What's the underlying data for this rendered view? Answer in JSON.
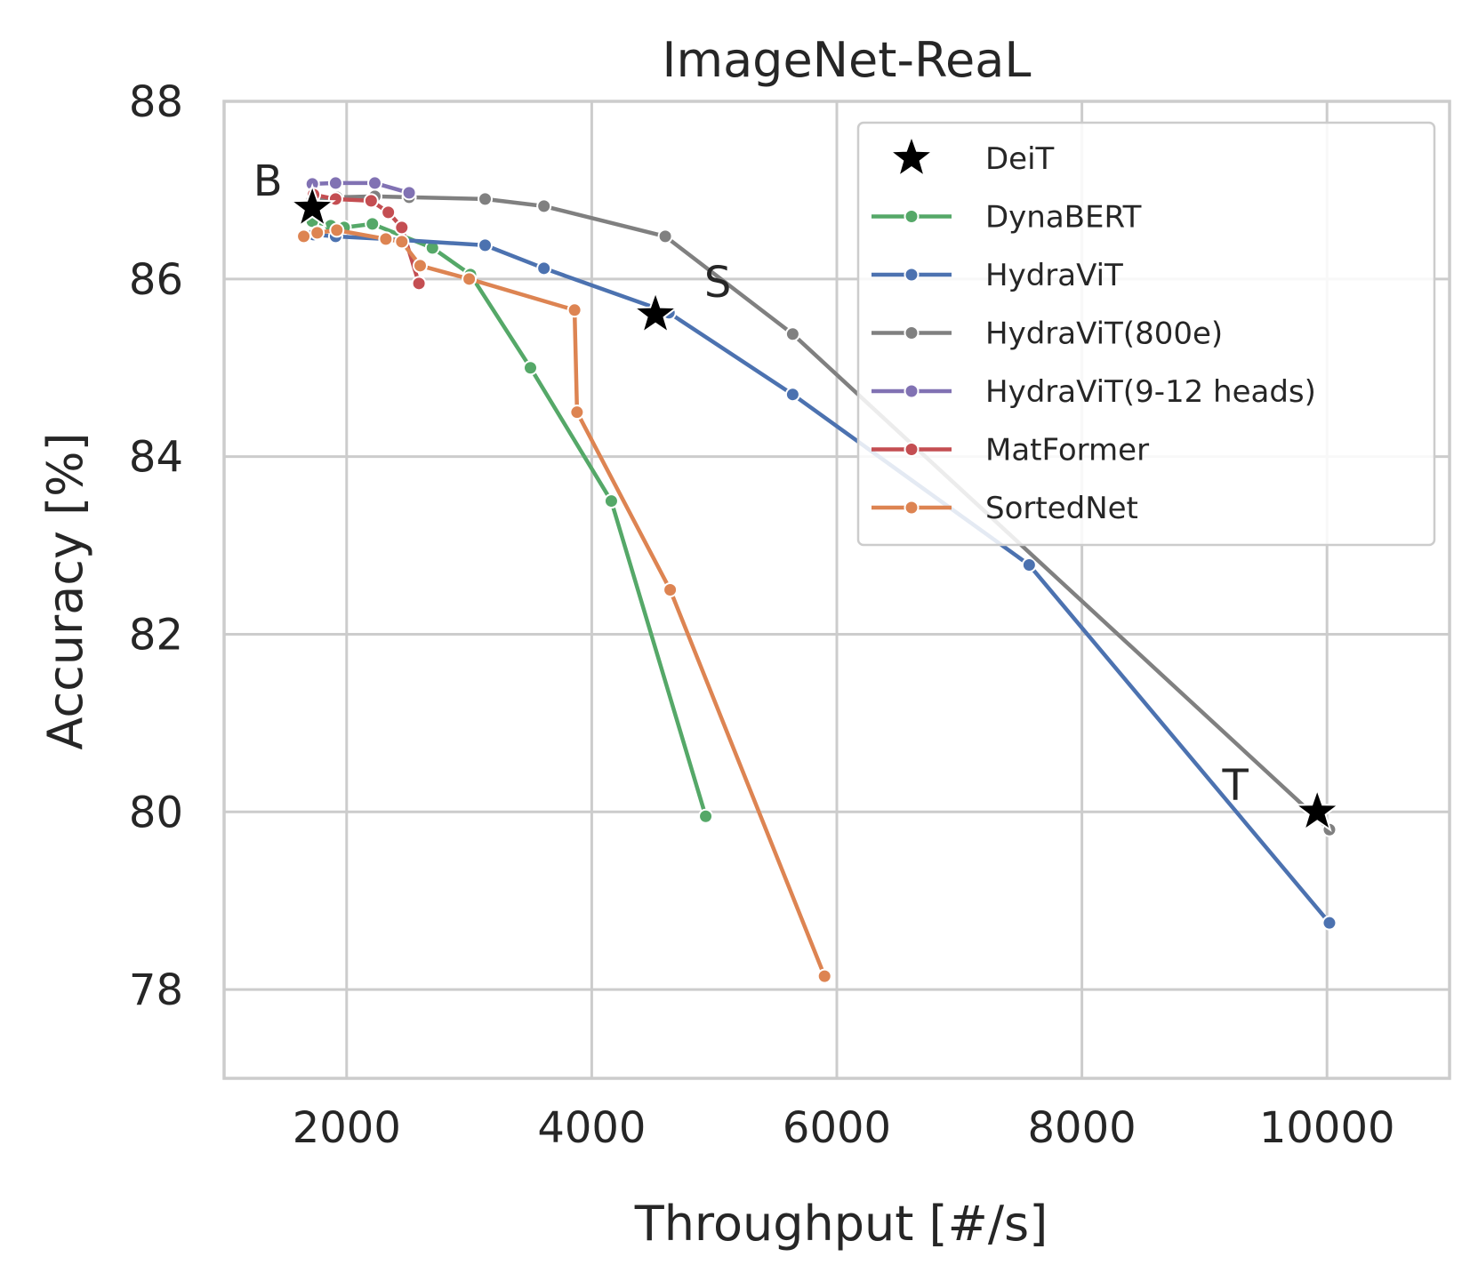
{
  "chart_data": {
    "type": "line",
    "title": "ImageNet-ReaL",
    "xlabel": "Throughput [#/s]",
    "ylabel": "Accuracy [%]",
    "xlim": [
      1000,
      11000
    ],
    "ylim": [
      77.0,
      88.0
    ],
    "xticks": [
      2000,
      4000,
      6000,
      8000,
      10000
    ],
    "yticks": [
      78,
      80,
      82,
      84,
      86,
      88
    ],
    "grid": true,
    "legend_position": "top-right",
    "series": [
      {
        "name": "DeiT",
        "kind": "marker",
        "marker": "star",
        "color": "#000000",
        "points": [
          {
            "x": 1720,
            "y": 86.8,
            "label": "B"
          },
          {
            "x": 4520,
            "y": 85.6,
            "label": "S"
          },
          {
            "x": 9920,
            "y": 80.0,
            "label": "T"
          }
        ]
      },
      {
        "name": "DynaBERT",
        "kind": "line",
        "color": "#55a868",
        "x": [
          1720,
          1870,
          1980,
          2210,
          2700,
          3010,
          3500,
          4160,
          4930
        ],
        "y": [
          86.65,
          86.6,
          86.58,
          86.62,
          86.35,
          86.05,
          85.0,
          83.5,
          79.95
        ]
      },
      {
        "name": "HydraViT",
        "kind": "line",
        "color": "#4c72b0",
        "x": [
          1730,
          1910,
          2320,
          3130,
          3610,
          4630,
          5640,
          7570,
          10020
        ],
        "y": [
          86.5,
          86.48,
          86.45,
          86.38,
          86.12,
          85.62,
          84.7,
          82.78,
          78.75
        ]
      },
      {
        "name": "HydraViT(800e)",
        "kind": "line",
        "color": "#808080",
        "x": [
          1720,
          1920,
          2230,
          2510,
          3130,
          3610,
          4600,
          5640,
          10020
        ],
        "y": [
          86.9,
          86.92,
          86.93,
          86.92,
          86.9,
          86.82,
          86.48,
          85.38,
          79.8
        ]
      },
      {
        "name": "HydraViT(9-12 heads)",
        "kind": "line",
        "color": "#8172b3",
        "x": [
          1720,
          1910,
          2230,
          2510
        ],
        "y": [
          87.07,
          87.08,
          87.08,
          86.97
        ]
      },
      {
        "name": "MatFormer",
        "kind": "line",
        "color": "#c44e52",
        "x": [
          1730,
          1910,
          2200,
          2340,
          2450,
          2590
        ],
        "y": [
          86.95,
          86.9,
          86.88,
          86.75,
          86.58,
          85.95
        ]
      },
      {
        "name": "SortedNet",
        "kind": "line",
        "color": "#dd8452",
        "x": [
          1650,
          1760,
          1920,
          2320,
          2450,
          2600,
          3000,
          3860,
          3880,
          4640,
          5900
        ],
        "y": [
          86.48,
          86.52,
          86.55,
          86.45,
          86.42,
          86.15,
          86.0,
          85.65,
          84.5,
          82.5,
          78.15
        ]
      }
    ]
  }
}
